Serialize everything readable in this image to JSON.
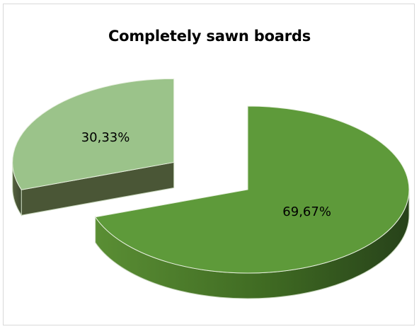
{
  "chart_data": {
    "type": "pie",
    "style": "3d-exploded",
    "title": "Completely sawn boards",
    "legend": "none",
    "slices": [
      {
        "value": 69.67,
        "label": "69,67%",
        "color": "#5e9a3a"
      },
      {
        "value": 30.33,
        "label": "30,33%",
        "color": "#9bc38a"
      }
    ]
  }
}
